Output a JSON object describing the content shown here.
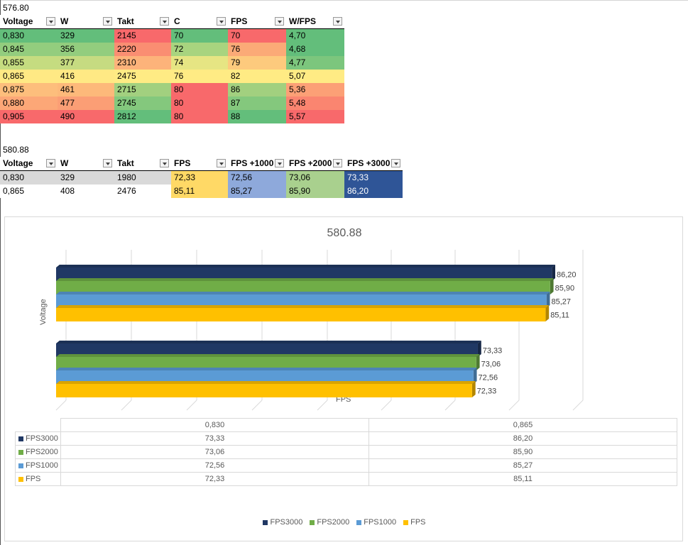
{
  "sheet": {
    "table1_title": "576.80",
    "table1": {
      "headers": [
        "Voltage",
        "W",
        "Takt",
        "C",
        "FPS",
        "W/FPS"
      ],
      "rows": [
        [
          "0,830",
          "329",
          "2145",
          "70",
          "70",
          "4,70"
        ],
        [
          "0,845",
          "356",
          "2220",
          "72",
          "76",
          "4,68"
        ],
        [
          "0,855",
          "377",
          "2310",
          "74",
          "79",
          "4,77"
        ],
        [
          "0,865",
          "416",
          "2475",
          "76",
          "82",
          "5,07"
        ],
        [
          "0,875",
          "461",
          "2715",
          "80",
          "86",
          "5,36"
        ],
        [
          "0,880",
          "477",
          "2745",
          "80",
          "87",
          "5,48"
        ],
        [
          "0,905",
          "490",
          "2812",
          "80",
          "88",
          "5,57"
        ]
      ],
      "colors": [
        [
          "#63BE7B",
          "#63BE7B",
          "#F8696B",
          "#63BE7B",
          "#F8696B",
          "#63BE7B"
        ],
        [
          "#93CD7E",
          "#93CD7E",
          "#FA8E72",
          "#A8D47F",
          "#FBAA77",
          "#63BE7B"
        ],
        [
          "#C5DC80",
          "#C6DB81",
          "#FDB37A",
          "#E6E583",
          "#FDCA7D",
          "#7CC67D"
        ],
        [
          "#FFE984",
          "#FFE984",
          "#FFEB84",
          "#FFEB84",
          "#FFEB84",
          "#FFEB84"
        ],
        [
          "#FDBE7C",
          "#FDB97A",
          "#A2D07F",
          "#F8696B",
          "#A2D07F",
          "#FCA076"
        ],
        [
          "#FCA777",
          "#FB9E75",
          "#84C87D",
          "#F8696B",
          "#84C87D",
          "#FA8570"
        ],
        [
          "#F8696B",
          "#F8696B",
          "#63BE7B",
          "#F8696B",
          "#63BE7B",
          "#F8696B"
        ]
      ]
    },
    "table2_title": "580.88",
    "table2": {
      "headers": [
        "Voltage",
        "W",
        "Takt",
        "FPS",
        "FPS +1000",
        "FPS +2000",
        "FPS +3000"
      ],
      "rows": [
        [
          "0,830",
          "329",
          "1980",
          "72,33",
          "72,56",
          "73,06",
          "73,33"
        ],
        [
          "0,865",
          "408",
          "2476",
          "85,11",
          "85,27",
          "85,90",
          "86,20"
        ]
      ],
      "colors": [
        [
          "#D9D9D9",
          "#D9D9D9",
          "#D9D9D9",
          "#FFD966",
          "#8EA9DB",
          "#A9D08E",
          "#2F5597"
        ],
        [
          "#FFFFFF",
          "#FFFFFF",
          "#FFFFFF",
          "#FFD966",
          "#8EA9DB",
          "#A9D08E",
          "#2F5597"
        ]
      ]
    }
  },
  "chart_data": {
    "type": "bar",
    "orientation": "horizontal-3d",
    "title": "580.88",
    "xlabel": "FPS",
    "ylabel": "Voltage",
    "xlim": [
      0,
      90
    ],
    "categories": [
      "0,830",
      "0,865"
    ],
    "series": [
      {
        "name": "FPS3000",
        "color": "#203864",
        "values": [
          73.33,
          86.2
        ],
        "labels": [
          "73,33",
          "86,20"
        ]
      },
      {
        "name": "FPS2000",
        "color": "#70AD47",
        "values": [
          73.06,
          85.9
        ],
        "labels": [
          "73,06",
          "85,90"
        ]
      },
      {
        "name": "FPS1000",
        "color": "#5B9BD5",
        "values": [
          72.56,
          85.27
        ],
        "labels": [
          "72,56",
          "85,27"
        ]
      },
      {
        "name": "FPS",
        "color": "#FFC000",
        "values": [
          72.33,
          85.11
        ],
        "labels": [
          "72,33",
          "85,11"
        ]
      }
    ],
    "legend": [
      "FPS3000",
      "FPS2000",
      "FPS1000",
      "FPS"
    ]
  }
}
